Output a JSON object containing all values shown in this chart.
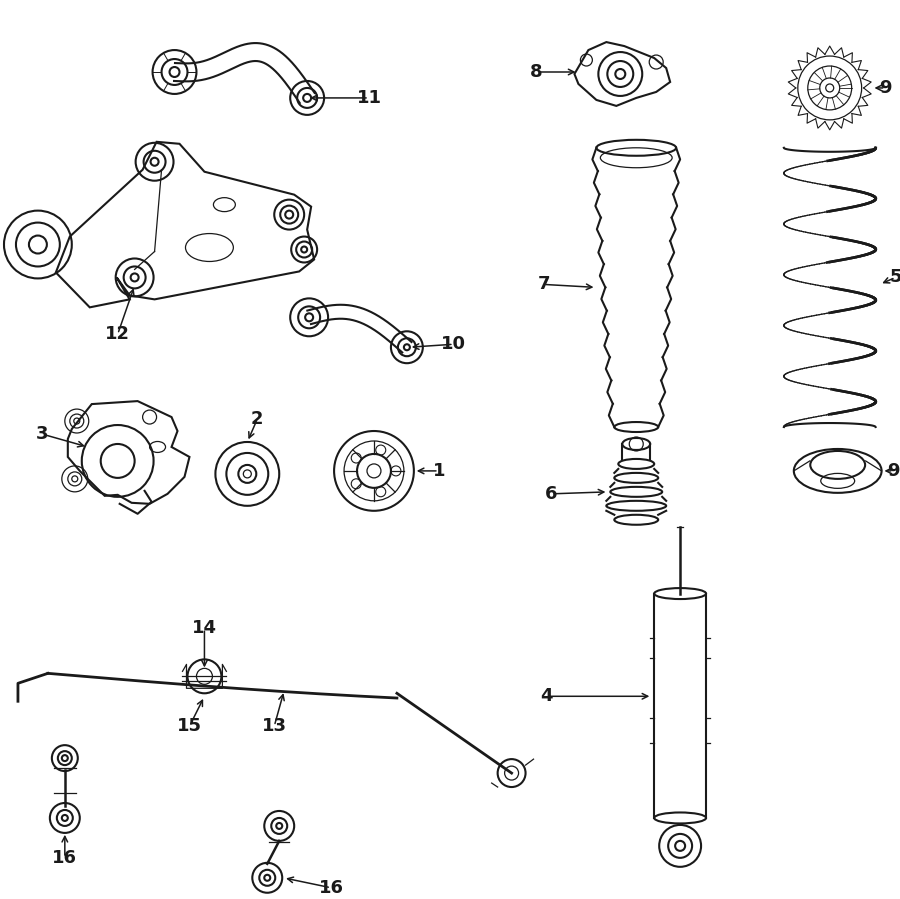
{
  "bg_color": "#ffffff",
  "line_color": "#1a1a1a",
  "figsize": [
    9.0,
    8.99
  ],
  "dpi": 100
}
